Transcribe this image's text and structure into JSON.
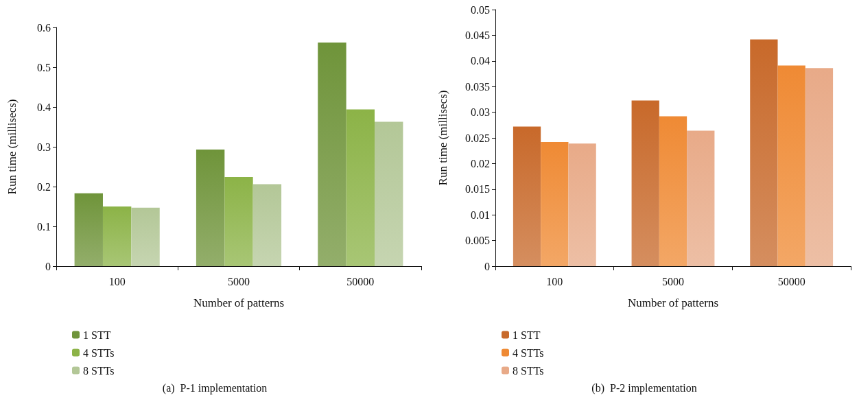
{
  "chart_data": [
    {
      "type": "bar",
      "title": "(a)  P-1 implementation",
      "xlabel": "Number of patterns",
      "ylabel": "Run time (millisecs)",
      "categories": [
        "100",
        "5000",
        "50000"
      ],
      "series": [
        {
          "name": "1 STT",
          "color": "#6f943a",
          "values": [
            0.183,
            0.293,
            0.562
          ]
        },
        {
          "name": "4 STTs",
          "color": "#8cb347",
          "values": [
            0.15,
            0.224,
            0.394
          ]
        },
        {
          "name": "8 STTs",
          "color": "#b3c797",
          "values": [
            0.147,
            0.206,
            0.363
          ]
        }
      ],
      "ylim": [
        0,
        0.6
      ],
      "yticks": [
        0,
        0.1,
        0.2,
        0.3,
        0.4,
        0.5,
        0.6
      ],
      "grid": false,
      "legend": "bottom left"
    },
    {
      "type": "bar",
      "title": "(b)  P-2 implementation",
      "xlabel": "Number of patterns",
      "ylabel": "Run time (millisecs)",
      "categories": [
        "100",
        "5000",
        "50000"
      ],
      "series": [
        {
          "name": "1 STT",
          "color": "#c8692a",
          "values": [
            0.0272,
            0.0323,
            0.0442
          ]
        },
        {
          "name": "4 STTs",
          "color": "#ef8a34",
          "values": [
            0.0242,
            0.0292,
            0.0391
          ]
        },
        {
          "name": "8 STTs",
          "color": "#e8aa88",
          "values": [
            0.0239,
            0.0264,
            0.0386
          ]
        }
      ],
      "ylim": [
        0,
        0.05
      ],
      "yticks": [
        0,
        0.005,
        0.01,
        0.015,
        0.02,
        0.025,
        0.03,
        0.035,
        0.04,
        0.045,
        0.05
      ],
      "grid": false,
      "legend": "bottom left"
    }
  ]
}
